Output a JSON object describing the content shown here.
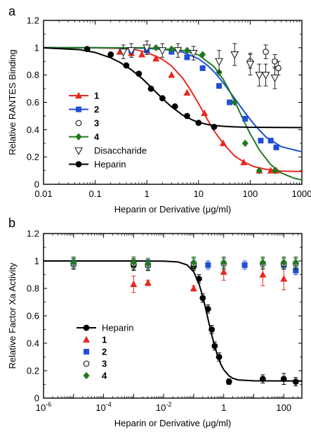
{
  "chart_data": [
    {
      "panel": "a",
      "type": "scatter",
      "xscale": "log",
      "xlim": [
        0.01,
        1000
      ],
      "ylim": [
        0,
        1.2
      ],
      "xticks": [
        0.01,
        0.1,
        1,
        10,
        100,
        1000
      ],
      "xtick_labels": [
        "0.01",
        "0.1",
        "1",
        "10",
        "100",
        "1000"
      ],
      "yticks": [
        0,
        0.2,
        0.4,
        0.6,
        0.8,
        1,
        1.2
      ],
      "ytick_labels": [
        "0",
        "0.2",
        "0.4",
        "0.6",
        "0.8",
        "1",
        "1.2"
      ],
      "xlabel": "Heparin or Derivative (μg/ml)",
      "ylabel": "Relative RANTES Binding",
      "legend_position": "lower-left",
      "series": [
        {
          "name": "1",
          "color": "#e8281f",
          "marker": "triangle-up",
          "fit": true,
          "x": [
            0.3,
            0.5,
            0.8,
            1.5,
            3,
            6,
            13,
            30,
            75,
            150,
            250,
            320
          ],
          "y": [
            0.97,
            0.96,
            0.95,
            0.92,
            0.8,
            0.67,
            0.52,
            0.3,
            0.16,
            0.1,
            0.1,
            0.1
          ],
          "fit_x": [
            0.01,
            0.1,
            0.3,
            0.6,
            1,
            2,
            3,
            5,
            7,
            10,
            14,
            20,
            30,
            50,
            80,
            120,
            200,
            400,
            1000
          ],
          "fit_y": [
            1.0,
            0.999,
            0.995,
            0.985,
            0.966,
            0.915,
            0.867,
            0.775,
            0.69,
            0.592,
            0.491,
            0.391,
            0.299,
            0.207,
            0.158,
            0.129,
            0.11,
            0.097,
            0.093
          ]
        },
        {
          "name": "2",
          "color": "#1e4fd6",
          "marker": "square",
          "fit": true,
          "x": [
            0.5,
            1,
            3,
            6,
            12,
            25,
            40,
            80,
            160,
            250,
            320
          ],
          "y": [
            0.98,
            0.98,
            0.97,
            0.93,
            0.85,
            0.72,
            0.6,
            0.48,
            0.32,
            0.32,
            0.27
          ],
          "fit_x": [
            0.01,
            0.1,
            1,
            3,
            5,
            10,
            15,
            20,
            30,
            50,
            80,
            120,
            200,
            400,
            1000
          ],
          "fit_y": [
            1.0,
            1.0,
            0.996,
            0.983,
            0.967,
            0.919,
            0.87,
            0.824,
            0.744,
            0.629,
            0.522,
            0.437,
            0.347,
            0.275,
            0.238
          ]
        },
        {
          "name": "3",
          "color": "#222222",
          "marker": "circle-open",
          "fit": false,
          "x": [
            100,
            200,
            300,
            350
          ],
          "y": [
            0.9,
            0.97,
            0.9,
            0.85
          ],
          "yerr": [
            0.05,
            0.05,
            0.05,
            0.05
          ]
        },
        {
          "name": "4",
          "color": "#1f7a1f",
          "marker": "diamond",
          "fit": true,
          "x": [
            1.5,
            3,
            6,
            12,
            25,
            50,
            80,
            150,
            300
          ],
          "y": [
            1.0,
            0.99,
            0.98,
            0.95,
            0.82,
            0.6,
            0.3,
            0.1,
            0.1
          ],
          "fit_x": [
            0.01,
            1,
            5,
            10,
            20,
            30,
            40,
            60,
            80,
            100,
            150,
            250,
            400,
            700,
            1000
          ],
          "fit_y": [
            1.0,
            0.999,
            0.98,
            0.947,
            0.861,
            0.769,
            0.684,
            0.544,
            0.443,
            0.37,
            0.252,
            0.143,
            0.083,
            0.045,
            0.032
          ]
        },
        {
          "name": "Disaccharide",
          "color": "#222222",
          "marker": "triangle-down-open",
          "fit": false,
          "x": [
            0.35,
            0.5,
            1,
            2,
            4,
            8,
            25,
            50,
            100,
            150,
            200,
            300
          ],
          "y": [
            0.97,
            0.98,
            1.0,
            0.98,
            0.98,
            0.96,
            0.9,
            0.95,
            0.88,
            0.8,
            0.8,
            0.78
          ],
          "yerr": [
            0.05,
            0.05,
            0.05,
            0.05,
            0.05,
            0.05,
            0.08,
            0.08,
            0.08,
            0.08,
            0.08,
            0.08
          ]
        },
        {
          "name": "Heparin",
          "color": "#000000",
          "marker": "circle",
          "fit": true,
          "x": [
            0.07,
            0.2,
            0.4,
            0.7,
            1.2,
            2,
            3.5,
            6,
            10,
            20
          ],
          "y": [
            0.99,
            0.95,
            0.87,
            0.81,
            0.7,
            0.63,
            0.57,
            0.5,
            0.45,
            0.42
          ],
          "fit_x": [
            0.01,
            0.05,
            0.1,
            0.2,
            0.3,
            0.5,
            0.8,
            1,
            1.5,
            2,
            3,
            5,
            8,
            10,
            15,
            20,
            30,
            50,
            100,
            1000
          ],
          "fit_y": [
            0.999,
            0.986,
            0.965,
            0.926,
            0.893,
            0.839,
            0.776,
            0.741,
            0.674,
            0.628,
            0.567,
            0.505,
            0.467,
            0.454,
            0.438,
            0.431,
            0.425,
            0.42,
            0.417,
            0.415
          ]
        }
      ]
    },
    {
      "panel": "b",
      "type": "scatter",
      "xscale": "log",
      "xlim": [
        1e-06,
        400
      ],
      "ylim": [
        0,
        1.2
      ],
      "xticks": [
        1e-06,
        0.0001,
        0.01,
        1,
        100
      ],
      "xtick_labels": [
        [
          "10",
          "-6"
        ],
        [
          "10",
          "-4"
        ],
        [
          "10",
          "-2"
        ],
        [
          "1",
          ""
        ],
        [
          "100",
          ""
        ]
      ],
      "yticks": [
        0,
        0.2,
        0.4,
        0.6,
        0.8,
        1,
        1.2
      ],
      "ytick_labels": [
        "0",
        "0.2",
        "0.4",
        "0.6",
        "0.8",
        "1",
        "1.2"
      ],
      "xlabel": "Heparin or Derivative (μg/ml)",
      "ylabel": "Relative Factor Xa Activity",
      "legend_position": "lower-left",
      "series": [
        {
          "name": "Heparin",
          "color": "#000000",
          "marker": "circle",
          "fit": true,
          "x": [
            1e-05,
            0.001,
            0.003,
            0.1,
            0.15,
            0.2,
            0.3,
            0.4,
            0.5,
            0.7,
            1.5,
            20,
            100,
            250
          ],
          "y": [
            0.98,
            0.97,
            0.97,
            0.96,
            0.87,
            0.73,
            0.65,
            0.5,
            0.38,
            0.3,
            0.12,
            0.14,
            0.14,
            0.12
          ],
          "yerr": [
            0.04,
            0.04,
            0.04,
            0.03,
            0.03,
            0.03,
            0.03,
            0.03,
            0.03,
            0.03,
            0.02,
            0.03,
            0.04,
            0.03
          ],
          "fit_x": [
            1e-06,
            0.001,
            0.01,
            0.03,
            0.06,
            0.1,
            0.15,
            0.2,
            0.25,
            0.3,
            0.4,
            0.5,
            0.6,
            0.8,
            1,
            1.5,
            2,
            3,
            10,
            400
          ],
          "fit_y": [
            1.0,
            1.0,
            0.999,
            0.993,
            0.972,
            0.921,
            0.834,
            0.741,
            0.653,
            0.577,
            0.459,
            0.378,
            0.32,
            0.247,
            0.207,
            0.162,
            0.145,
            0.133,
            0.126,
            0.125
          ]
        },
        {
          "name": "1",
          "color": "#e8281f",
          "marker": "triangle-up",
          "fit": false,
          "x": [
            0.001,
            0.003,
            0.1,
            1,
            20,
            100
          ],
          "y": [
            0.83,
            0.84,
            0.8,
            0.92,
            0.9,
            0.87
          ],
          "yerr": [
            0.06,
            0.02,
            0.02,
            0.06,
            0.08,
            0.08
          ]
        },
        {
          "name": "2",
          "color": "#1e4fd6",
          "marker": "square",
          "fit": false,
          "x": [
            1e-05,
            0.003,
            0.3,
            5,
            100,
            250
          ],
          "y": [
            0.98,
            0.97,
            0.97,
            0.97,
            0.97,
            0.93
          ],
          "yerr": [
            0.03,
            0.03,
            0.03,
            0.03,
            0.03,
            0.03
          ]
        },
        {
          "name": "3",
          "color": "#222222",
          "marker": "circle-open",
          "fit": false,
          "x": [
            1e-05,
            0.001,
            0.003,
            0.1,
            1,
            20,
            100,
            250
          ],
          "y": [
            0.98,
            0.98,
            0.97,
            0.98,
            0.98,
            0.98,
            0.98,
            0.98
          ],
          "yerr": [
            0.04,
            0.04,
            0.04,
            0.04,
            0.04,
            0.04,
            0.04,
            0.04
          ]
        },
        {
          "name": "4",
          "color": "#1f7a1f",
          "marker": "diamond",
          "fit": false,
          "x": [
            1e-05,
            0.001,
            0.003,
            0.1,
            1,
            20,
            100,
            250
          ],
          "y": [
            0.99,
            0.99,
            0.98,
            0.99,
            0.99,
            0.99,
            0.99,
            0.99
          ],
          "yerr": [
            0.04,
            0.04,
            0.04,
            0.04,
            0.04,
            0.04,
            0.04,
            0.04
          ]
        }
      ]
    }
  ]
}
